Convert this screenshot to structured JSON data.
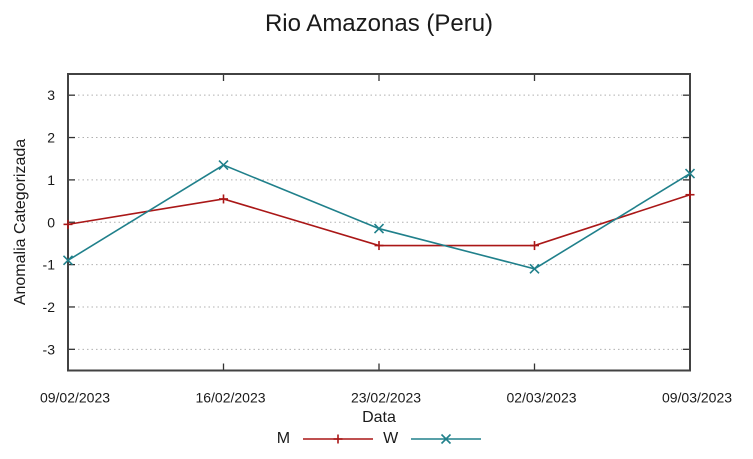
{
  "chart_data": {
    "type": "line",
    "title": "Rio Amazonas (Peru)",
    "xlabel": "Data",
    "ylabel": "Anomalia Categorizada",
    "categories": [
      "09/02/2023",
      "16/02/2023",
      "23/02/2023",
      "02/03/2023",
      "09/03/2023"
    ],
    "series": [
      {
        "name": "M",
        "marker": "plus",
        "color": "#aa1717",
        "values": [
          -0.05,
          0.55,
          -0.55,
          -0.55,
          0.65
        ]
      },
      {
        "name": "W",
        "marker": "cross",
        "color": "#20808b",
        "values": [
          -0.9,
          1.35,
          -0.15,
          -1.1,
          1.15
        ]
      }
    ],
    "yticks": [
      -3,
      -2,
      -1,
      0,
      1,
      2,
      3
    ],
    "ylim": [
      -3.5,
      3.5
    ],
    "grid": "horizontal-dotted",
    "legend_position": "bottom-center"
  },
  "colors": {
    "background": "#ffffff",
    "border": "#424242",
    "grid": "#b0b0b0",
    "text": "#1a1a1a"
  }
}
